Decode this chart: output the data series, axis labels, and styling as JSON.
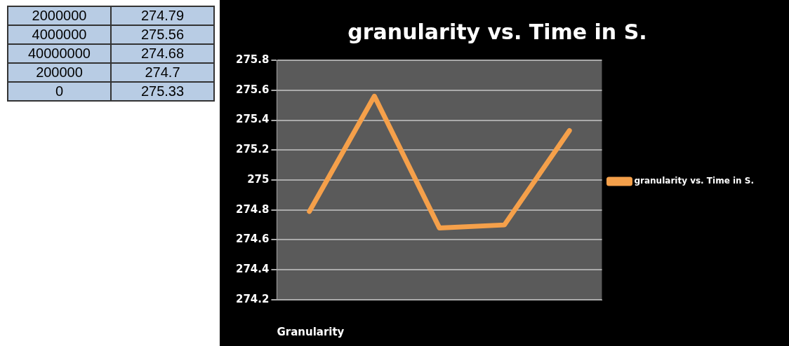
{
  "chart_data": [
    {
      "type": "other",
      "annotations": [
        "2000000",
        "274.79",
        "4000000",
        "275.56",
        "40000000",
        "274.68",
        "200000",
        "274.7",
        "0",
        "275.33"
      ]
    },
    {
      "type": "line",
      "title": "granularity vs. Time in S.",
      "xlabel": "Granularity",
      "categories": [
        null,
        null,
        null,
        null,
        null
      ],
      "series": [
        {
          "name": "granularity vs. Time in S.",
          "color": "#f5a04a",
          "values": [
            274.79,
            275.56,
            274.68,
            274.7,
            275.33
          ]
        }
      ],
      "ylim": [
        274.2,
        275.8
      ],
      "yticks": [
        274.2,
        274.4,
        274.6,
        274.8,
        275,
        275.2,
        275.4,
        275.6,
        275.8
      ],
      "grid": "y",
      "legend": "right",
      "tick_labels": "y",
      "line_style": "solid"
    }
  ]
}
